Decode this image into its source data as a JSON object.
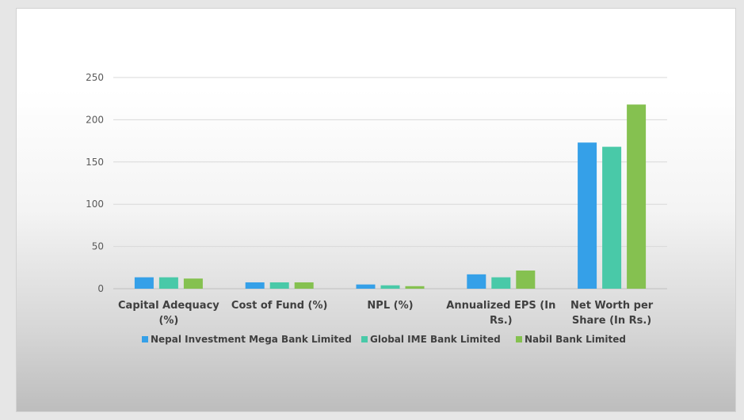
{
  "chart_data": {
    "type": "bar",
    "categories": [
      [
        "Capital Adequacy",
        "(%)"
      ],
      [
        "Cost of Fund (%)"
      ],
      [
        "NPL (%)"
      ],
      [
        "Annualized EPS (In",
        "Rs.)"
      ],
      [
        "Net Worth per",
        "Share (In Rs.)"
      ]
    ],
    "series": [
      {
        "name": "Nepal Investment Mega Bank Limited",
        "color": "#35a0e8",
        "values": [
          13.5,
          7.5,
          5,
          17,
          173
        ]
      },
      {
        "name": "Global IME Bank Limited",
        "color": "#49c9a8",
        "values": [
          13.5,
          7.5,
          4,
          13.5,
          168
        ]
      },
      {
        "name": "Nabil Bank Limited",
        "color": "#85c150",
        "values": [
          12,
          7.5,
          3,
          21.5,
          218
        ]
      }
    ],
    "yticks": [
      "0",
      "50",
      "100",
      "150",
      "200",
      "250"
    ],
    "ylim": [
      0,
      250
    ],
    "grid": true,
    "legend_position": "bottom"
  }
}
